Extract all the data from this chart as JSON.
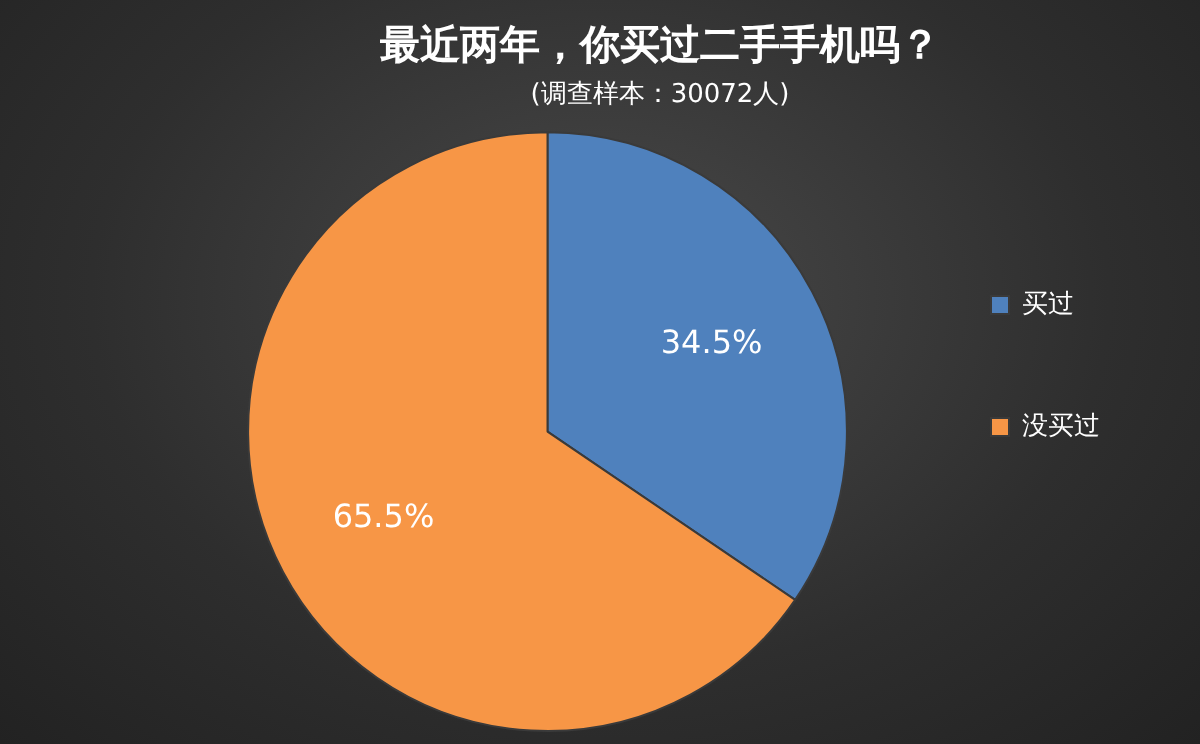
{
  "chart_data": {
    "type": "pie",
    "title": "最近两年，你买过二手手机吗？",
    "subtitle": "(调查样本：30072人)",
    "categories": [
      "买过",
      "没买过"
    ],
    "values": [
      34.5,
      65.5
    ],
    "colors": [
      "#4f81bd",
      "#f79646"
    ],
    "value_labels": [
      "34.5%",
      "65.5%"
    ],
    "legend": "right"
  }
}
